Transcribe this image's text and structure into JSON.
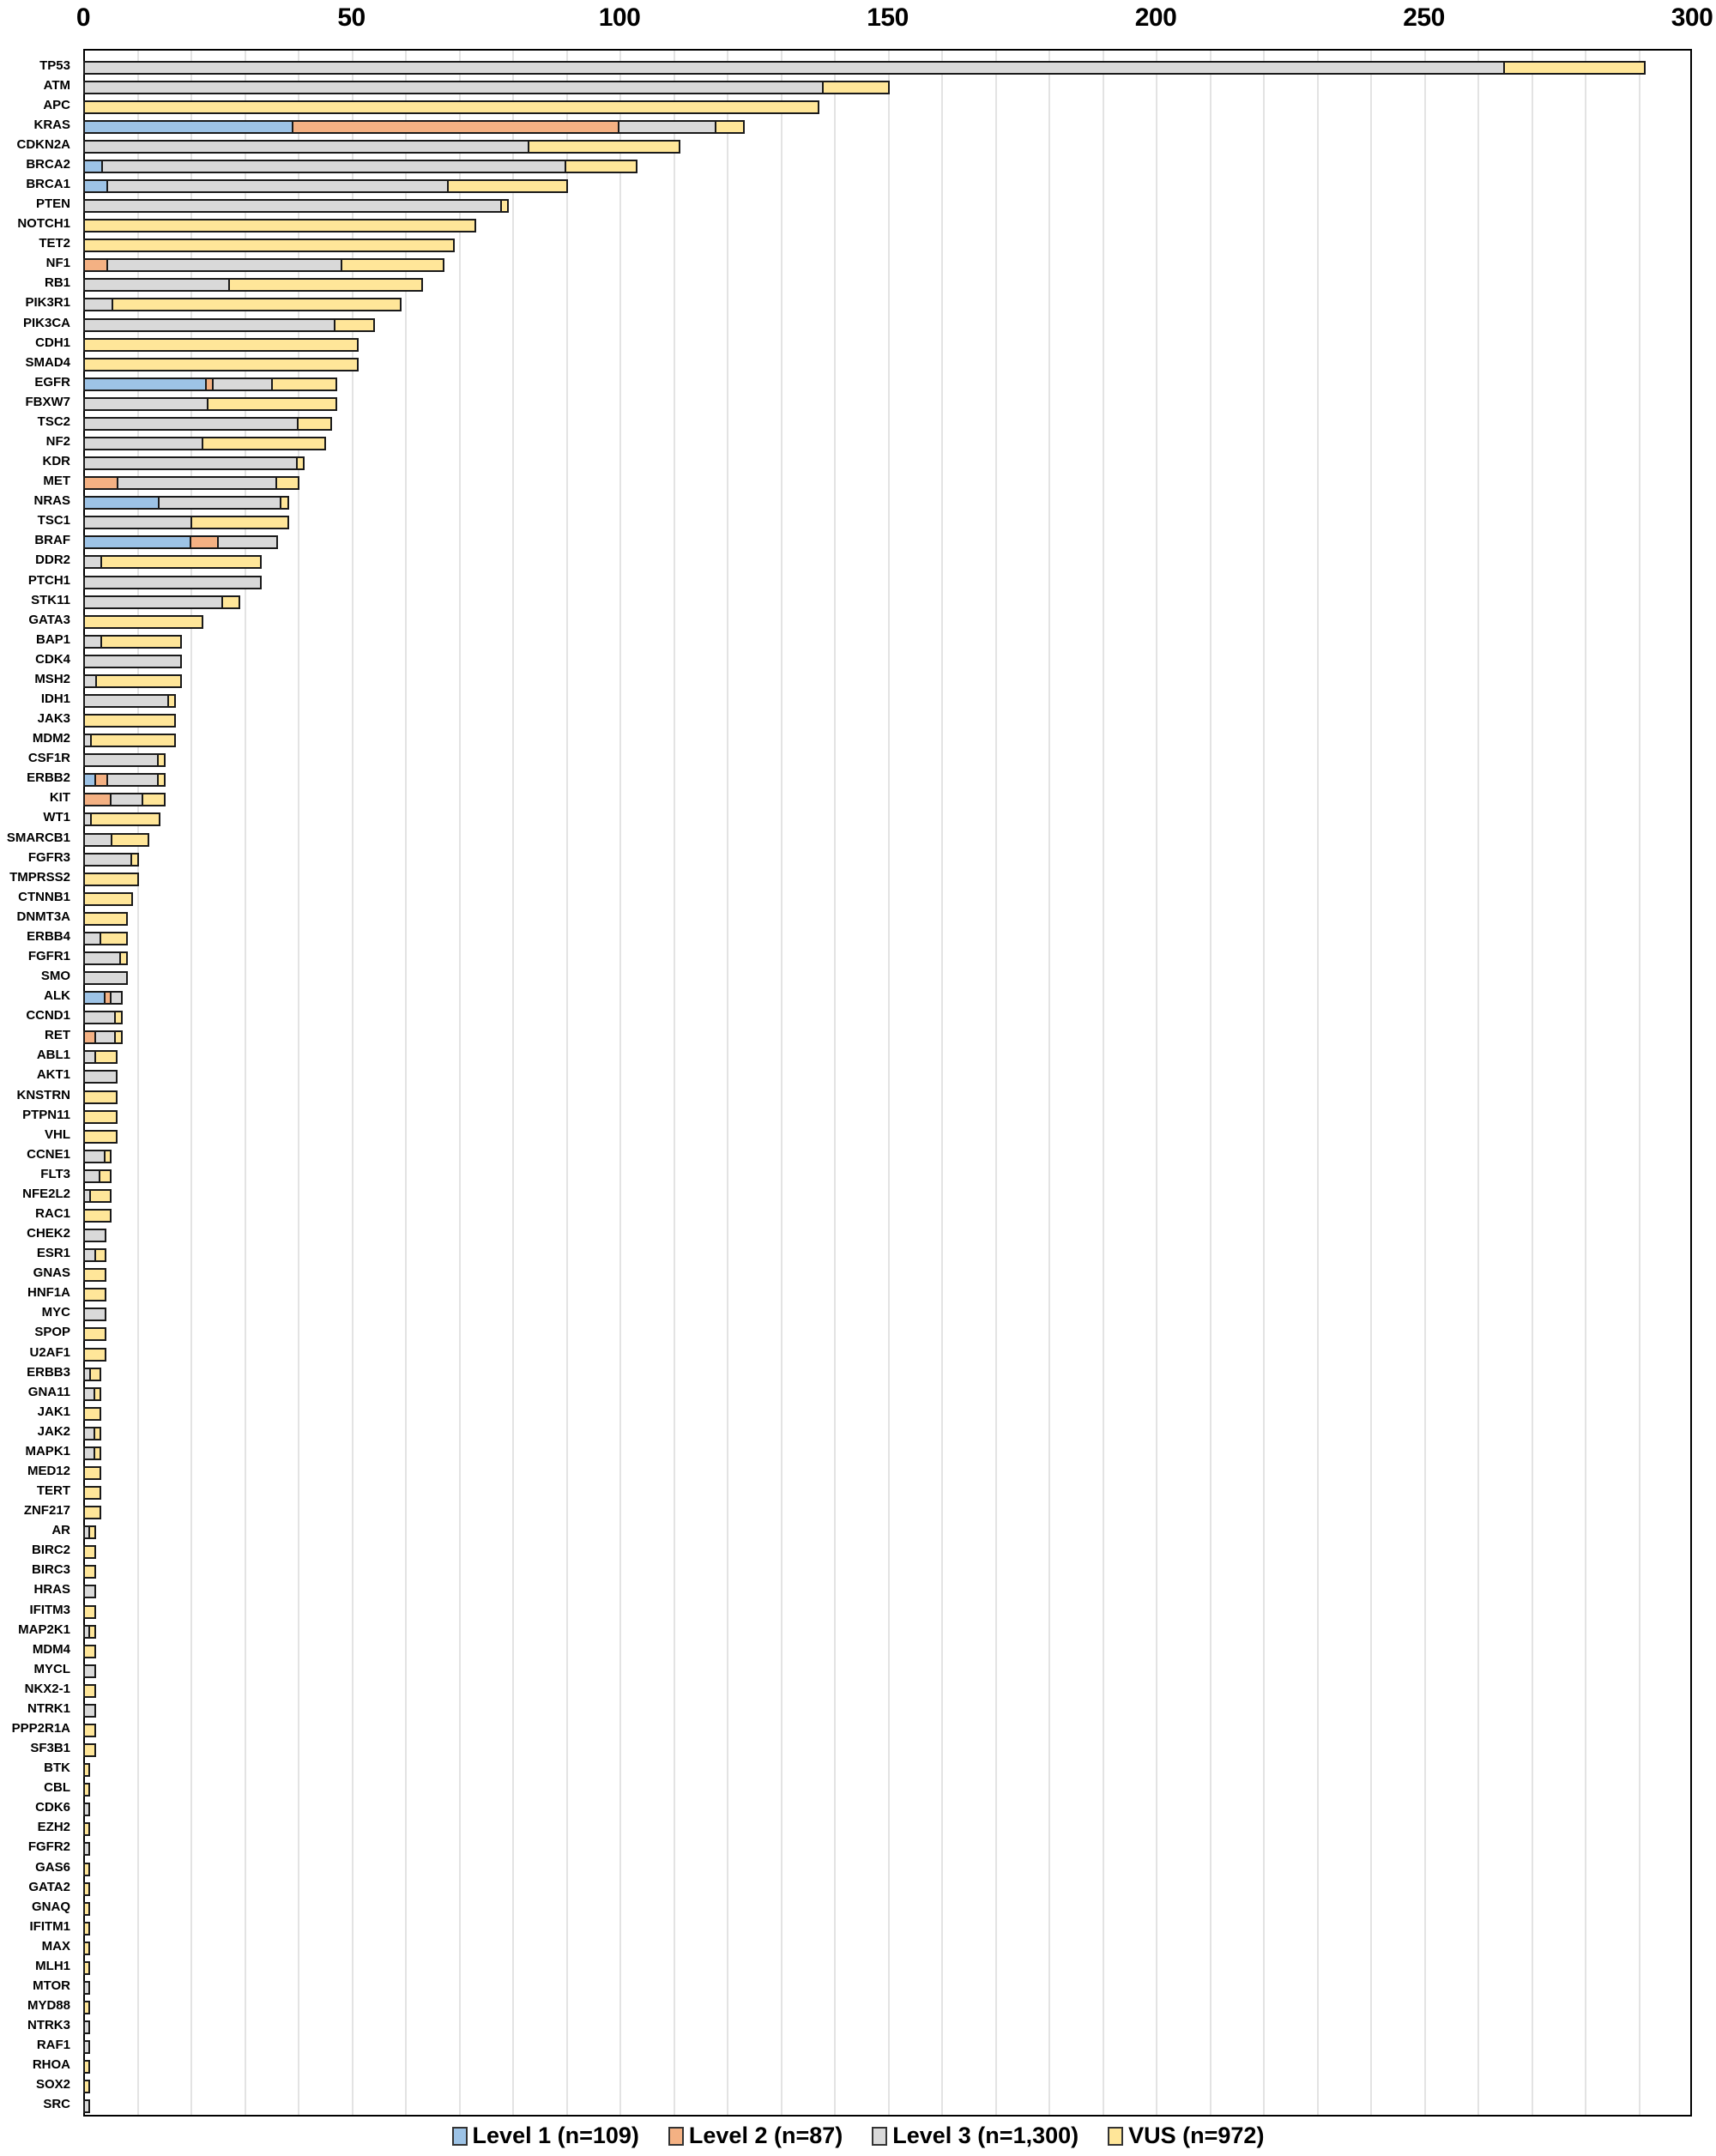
{
  "chart_data": {
    "type": "bar",
    "orientation": "horizontal",
    "stacked": true,
    "title": "",
    "xlabel": "",
    "ylabel": "",
    "xlim": [
      0,
      300
    ],
    "x_ticks": [
      0,
      50,
      100,
      150,
      200,
      250,
      300
    ],
    "x_tick_position": "top",
    "minor_gridlines_every": 10,
    "grid": true,
    "legend_position": "bottom",
    "colors": {
      "Level 1": "#9dc3e6",
      "Level 2": "#f4b183",
      "Level 3": "#d9d9d9",
      "VUS": "#ffe699"
    },
    "legend": [
      {
        "key": "Level 1",
        "label": "Level 1 (n=109)"
      },
      {
        "key": "Level 2",
        "label": "Level 2 (n=87)"
      },
      {
        "key": "Level 3",
        "label": "Level 3 (n=1,300)"
      },
      {
        "key": "VUS",
        "label": "VUS (n=972)"
      }
    ],
    "categories": [
      "TP53",
      "ATM",
      "APC",
      "KRAS",
      "CDKN2A",
      "BRCA2",
      "BRCA1",
      "PTEN",
      "NOTCH1",
      "TET2",
      "NF1",
      "RB1",
      "PIK3R1",
      "PIK3CA",
      "CDH1",
      "SMAD4",
      "EGFR",
      "FBXW7",
      "TSC2",
      "NF2",
      "KDR",
      "MET",
      "NRAS",
      "TSC1",
      "BRAF",
      "DDR2",
      "PTCH1",
      "STK11",
      "GATA3",
      "BAP1",
      "CDK4",
      "MSH2",
      "IDH1",
      "JAK3",
      "MDM2",
      "CSF1R",
      "ERBB2",
      "KIT",
      "WT1",
      "SMARCB1",
      "FGFR3",
      "TMPRSS2",
      "CTNNB1",
      "DNMT3A",
      "ERBB4",
      "FGFR1",
      "SMO",
      "ALK",
      "CCND1",
      "RET",
      "ABL1",
      "AKT1",
      "KNSTRN",
      "PTPN11",
      "VHL",
      "CCNE1",
      "FLT3",
      "NFE2L2",
      "RAC1",
      "CHEK2",
      "ESR1",
      "GNAS",
      "HNF1A",
      "MYC",
      "SPOP",
      "U2AF1",
      "ERBB3",
      "GNA11",
      "JAK1",
      "JAK2",
      "MAPK1",
      "MED12",
      "TERT",
      "ZNF217",
      "AR",
      "BIRC2",
      "BIRC3",
      "HRAS",
      "IFITM3",
      "MAP2K1",
      "MDM4",
      "MYCL",
      "NKX2-1",
      "NTRK1",
      "PPP2R1A",
      "SF3B1",
      "BTK",
      "CBL",
      "CDK6",
      "EZH2",
      "FGFR2",
      "GAS6",
      "GATA2",
      "GNAQ",
      "IFITM1",
      "MAX",
      "MLH1",
      "MTOR",
      "MYD88",
      "NTRK3",
      "RAF1",
      "RHOA",
      "SOX2",
      "SRC"
    ],
    "series": [
      {
        "name": "Level 1",
        "values": [
          0,
          0,
          0,
          39,
          0,
          3,
          4,
          0,
          0,
          0,
          0,
          0,
          0,
          0,
          0,
          0,
          23,
          0,
          0,
          0,
          0,
          0,
          14,
          0,
          20,
          0,
          0,
          0,
          0,
          0,
          0,
          0,
          0,
          0,
          0,
          0,
          2,
          0,
          0,
          0,
          0,
          0,
          0,
          0,
          0,
          0,
          0,
          4,
          0,
          0,
          0,
          0,
          0,
          0,
          0,
          0,
          0,
          0,
          0,
          0,
          0,
          0,
          0,
          0,
          0,
          0,
          0,
          0,
          0,
          0,
          0,
          0,
          0,
          0,
          0,
          0,
          0,
          0,
          0,
          0,
          0,
          0,
          0,
          0,
          0,
          0,
          0,
          0,
          0,
          0,
          0,
          0,
          0,
          0,
          0,
          0,
          0,
          0,
          0,
          0,
          0,
          0,
          0,
          0
        ]
      },
      {
        "name": "Level 2",
        "values": [
          0,
          0,
          0,
          61,
          0,
          0,
          0,
          0,
          0,
          0,
          4,
          0,
          0,
          0,
          0,
          0,
          1,
          0,
          0,
          0,
          0,
          6,
          0,
          0,
          5,
          0,
          0,
          0,
          0,
          0,
          0,
          0,
          0,
          0,
          0,
          0,
          2,
          5,
          0,
          0,
          0,
          0,
          0,
          0,
          0,
          0,
          0,
          1,
          0,
          2,
          0,
          0,
          0,
          0,
          0,
          0,
          0,
          0,
          0,
          0,
          0,
          0,
          0,
          0,
          0,
          0,
          0,
          0,
          0,
          0,
          0,
          0,
          0,
          0,
          0,
          0,
          0,
          0,
          0,
          0,
          0,
          0,
          0,
          0,
          0,
          0,
          0,
          0,
          0,
          0,
          0,
          0,
          0,
          0,
          0,
          0,
          0,
          0,
          0,
          0,
          0,
          0,
          0,
          0
        ]
      },
      {
        "name": "Level 3",
        "values": [
          265,
          138,
          0,
          18,
          83,
          87,
          64,
          78,
          0,
          0,
          44,
          27,
          5,
          47,
          0,
          0,
          11,
          23,
          40,
          22,
          40,
          30,
          23,
          20,
          11,
          3,
          33,
          26,
          0,
          3,
          18,
          2,
          16,
          0,
          1,
          14,
          10,
          6,
          1,
          5,
          9,
          0,
          0,
          0,
          3,
          7,
          8,
          2,
          6,
          4,
          2,
          6,
          0,
          0,
          0,
          4,
          3,
          1,
          0,
          4,
          2,
          0,
          0,
          4,
          0,
          0,
          1,
          2,
          0,
          2,
          2,
          0,
          0,
          0,
          1,
          0,
          0,
          2,
          0,
          1,
          0,
          2,
          0,
          2,
          0,
          0,
          0,
          0,
          1,
          0,
          1,
          0,
          0,
          0,
          0,
          0,
          0,
          1,
          0,
          1,
          1,
          0,
          0,
          1
        ]
      },
      {
        "name": "VUS",
        "values": [
          26,
          12,
          137,
          5,
          28,
          13,
          22,
          1,
          73,
          69,
          19,
          36,
          54,
          7,
          51,
          51,
          12,
          24,
          6,
          23,
          1,
          4,
          1,
          18,
          0,
          30,
          0,
          3,
          22,
          15,
          0,
          16,
          1,
          17,
          16,
          1,
          1,
          4,
          13,
          7,
          1,
          10,
          9,
          8,
          5,
          1,
          0,
          0,
          1,
          1,
          4,
          0,
          6,
          6,
          6,
          1,
          2,
          4,
          5,
          0,
          2,
          4,
          4,
          0,
          4,
          4,
          2,
          1,
          3,
          1,
          1,
          3,
          3,
          3,
          1,
          2,
          2,
          0,
          2,
          1,
          2,
          0,
          2,
          0,
          2,
          2,
          1,
          1,
          0,
          1,
          0,
          1,
          1,
          1,
          1,
          1,
          1,
          0,
          1,
          0,
          0,
          1,
          1,
          0
        ]
      }
    ]
  }
}
